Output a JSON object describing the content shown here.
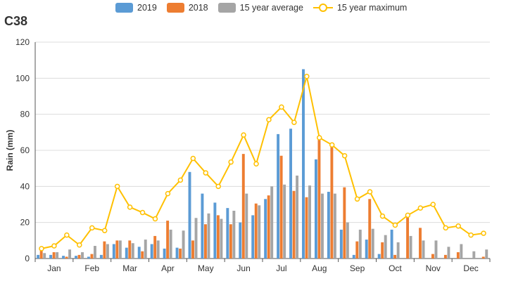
{
  "chart_data": {
    "type": "bar",
    "title": "C38",
    "ylabel": "Rain (mm)",
    "xlabel": "",
    "ylim": [
      0,
      120
    ],
    "yticks": [
      0,
      20,
      40,
      60,
      80,
      100,
      120
    ],
    "grid": true,
    "legend_position": "top-center",
    "month_labels": [
      "Jan",
      "Feb",
      "Mar",
      "Apr",
      "May",
      "Jun",
      "Jul",
      "Aug",
      "Sep",
      "Oct",
      "Nov",
      "Dec"
    ],
    "periods_per_month": 3,
    "series": [
      {
        "name": "2019",
        "kind": "bar",
        "color": "#5b9bd5",
        "values": [
          2,
          2,
          1.5,
          1.5,
          1,
          2,
          8,
          6,
          6.5,
          8,
          5.5,
          6,
          48,
          36,
          31,
          28,
          20,
          24,
          33,
          69,
          72,
          105,
          55,
          37,
          16,
          2,
          10.5,
          2.5,
          16,
          0,
          0,
          0,
          0,
          0,
          0,
          0
        ]
      },
      {
        "name": "2018",
        "kind": "bar",
        "color": "#ed7d31",
        "values": [
          5,
          3.5,
          1,
          2,
          2.5,
          9.5,
          10,
          10,
          4,
          12.5,
          21,
          5.5,
          10,
          19,
          24,
          19,
          58,
          30.5,
          35,
          57,
          37.5,
          34,
          66,
          62,
          39.5,
          9.5,
          33,
          9,
          2,
          23.5,
          17,
          2.5,
          2,
          3.5,
          0,
          1
        ]
      },
      {
        "name": "15 year average",
        "kind": "bar",
        "color": "#a5a5a5",
        "values": [
          3,
          3.5,
          5,
          3.5,
          7,
          8,
          10,
          8.5,
          10.5,
          10,
          16,
          15.5,
          22.5,
          25,
          22,
          26.5,
          36,
          29.5,
          40,
          41,
          46,
          40.5,
          36,
          36,
          20,
          16,
          16.5,
          13,
          9,
          12.5,
          10,
          10,
          6.5,
          8,
          4,
          5
        ]
      },
      {
        "name": "15 year maximum",
        "kind": "line",
        "color": "#ffc000",
        "values": [
          5.5,
          7,
          13,
          7.5,
          17,
          15.5,
          40,
          28.5,
          25.5,
          22,
          36,
          43.5,
          55.5,
          47.5,
          40,
          53.5,
          68.5,
          52.5,
          77,
          84,
          75.5,
          101,
          67,
          63,
          57,
          33,
          37,
          23.5,
          18.5,
          24,
          28,
          30,
          17,
          18,
          13,
          14
        ]
      }
    ]
  }
}
